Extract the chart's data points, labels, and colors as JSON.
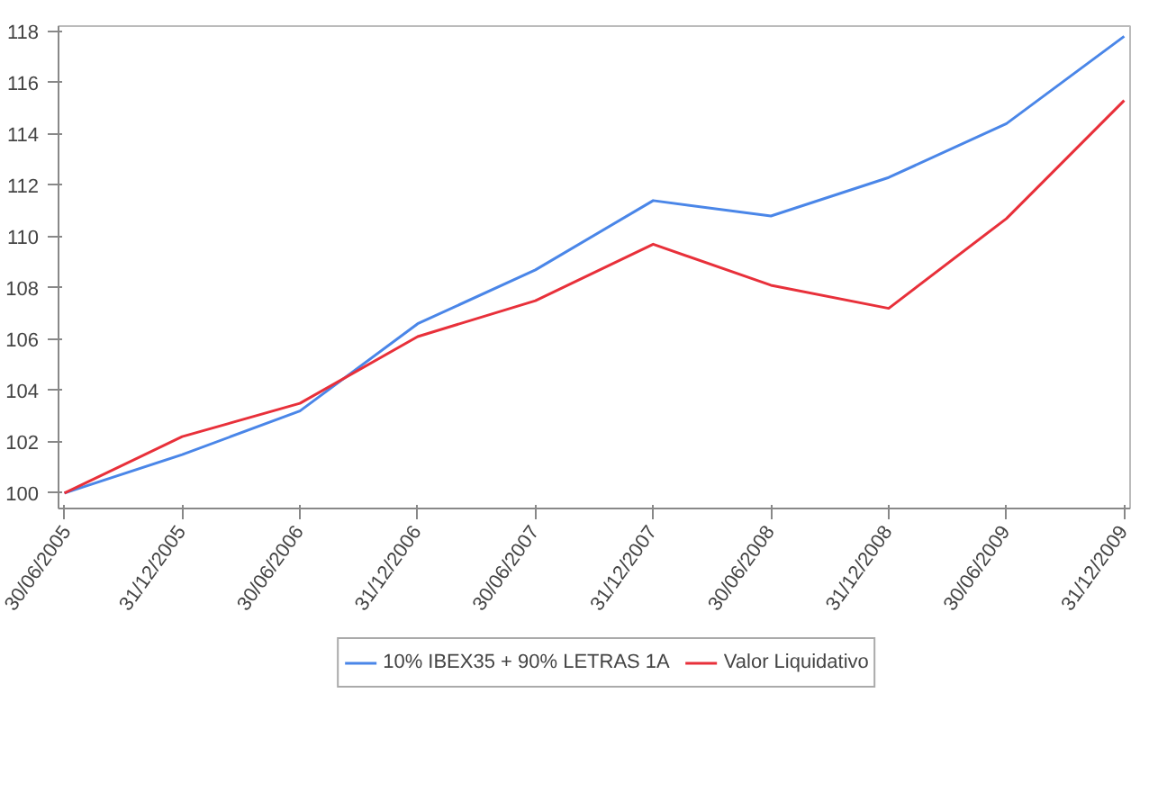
{
  "chart_data": {
    "type": "line",
    "categories": [
      "30/06/2005",
      "31/12/2005",
      "30/06/2006",
      "31/12/2006",
      "30/06/2007",
      "31/12/2007",
      "30/06/2008",
      "31/12/2008",
      "30/06/2009",
      "31/12/2009"
    ],
    "series": [
      {
        "name": "10% IBEX35 + 90% LETRAS 1A",
        "color": "#4a86e8",
        "values": [
          100,
          101.5,
          103.2,
          106.6,
          108.7,
          111.4,
          110.8,
          112.3,
          114.4,
          117.8
        ]
      },
      {
        "name": "Valor Liquidativo",
        "color": "#e8303a",
        "values": [
          100,
          102.2,
          103.5,
          106.1,
          107.5,
          109.7,
          108.1,
          107.2,
          110.7,
          115.3
        ]
      }
    ],
    "ylim": [
      99.4,
      118.2
    ],
    "yticks": [
      100,
      102,
      104,
      106,
      108,
      110,
      112,
      114,
      116,
      118
    ],
    "grid": false,
    "legend": "bottom",
    "marker": "none",
    "line_style": "solid"
  }
}
